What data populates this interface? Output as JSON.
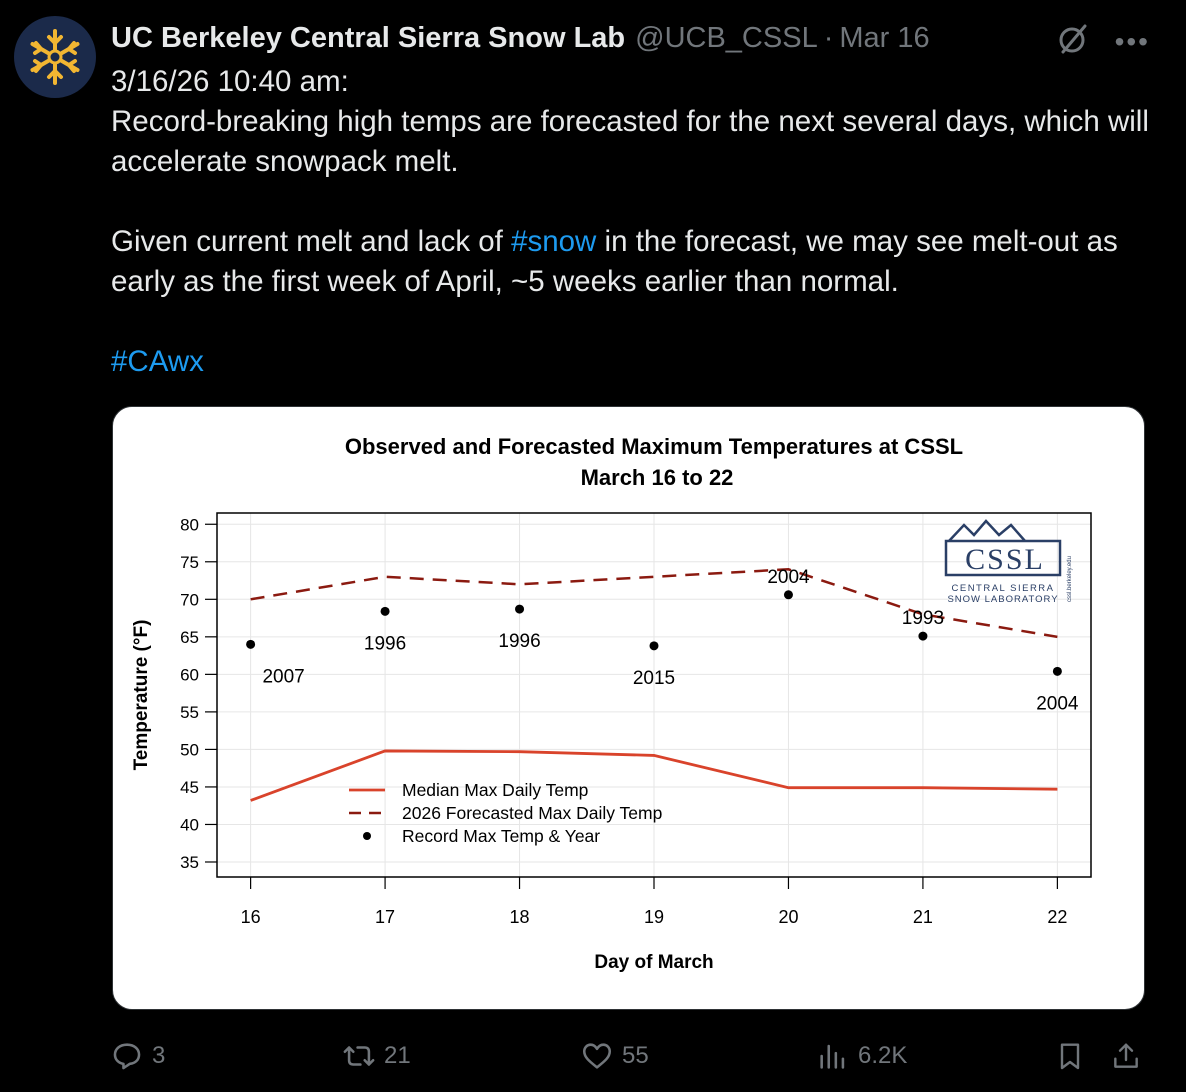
{
  "author": {
    "name": "UC Berkeley Central Sierra Snow Lab",
    "handle": "@UCB_CSSL",
    "separator": "·",
    "date": "Mar 16",
    "avatar_icon": "snowflake-icon"
  },
  "tweet": {
    "line1": "3/16/26 10:40 am:",
    "line2": "Record-breaking high temps are forecasted for the next several days, which will accelerate snowpack melt.",
    "para2_before": "Given current melt and lack of ",
    "para2_hashtag": "#snow",
    "para2_after": " in the forecast, we may see melt-out as early as the first week of April, ~5 weeks earlier than normal.",
    "hashtag2": "#CAwx"
  },
  "colors": {
    "median": "#d9432b",
    "forecast": "#8b1a10",
    "record": "#000000",
    "accent": "#1d9bf0",
    "logo": "#2a3f66"
  },
  "logo": {
    "text": "CSSL",
    "line1": "CENTRAL SIERRA",
    "line2": "SNOW LABORATORY",
    "url": "cssl.berkeley.edu"
  },
  "chart_data": {
    "type": "line",
    "title": "Observed and Forecasted Maximum Temperatures at CSSL",
    "subtitle": "March 16 to 22",
    "xlabel": "Day of March",
    "ylabel": "Temperature (°F)",
    "x": [
      16,
      17,
      18,
      19,
      20,
      21,
      22
    ],
    "xlim": [
      15.75,
      22.25
    ],
    "ylim": [
      33,
      81.5
    ],
    "yticks": [
      35,
      40,
      45,
      50,
      55,
      60,
      65,
      70,
      75,
      80
    ],
    "grid": true,
    "legend_position": "bottom-left",
    "series": [
      {
        "name": "Median Max Daily Temp",
        "style": "solid",
        "values": [
          43.2,
          49.8,
          49.7,
          49.2,
          44.9,
          44.9,
          44.7
        ]
      },
      {
        "name": "2026 Forecasted Max Daily Temp",
        "style": "dashed",
        "values": [
          70,
          73,
          72,
          73,
          74,
          68,
          65
        ]
      },
      {
        "name": "Record Max Temp & Year",
        "style": "points",
        "values": [
          64,
          68.4,
          68.7,
          63.8,
          70.6,
          65.1,
          60.4
        ],
        "labels": [
          "2007",
          "1996",
          "1996",
          "2015",
          "2004",
          "1993",
          "2004"
        ],
        "label_side": [
          "below",
          "below",
          "below",
          "below",
          "above",
          "above",
          "below"
        ]
      }
    ]
  },
  "actions": {
    "replies": "3",
    "reposts": "21",
    "likes": "55",
    "views": "6.2K"
  }
}
